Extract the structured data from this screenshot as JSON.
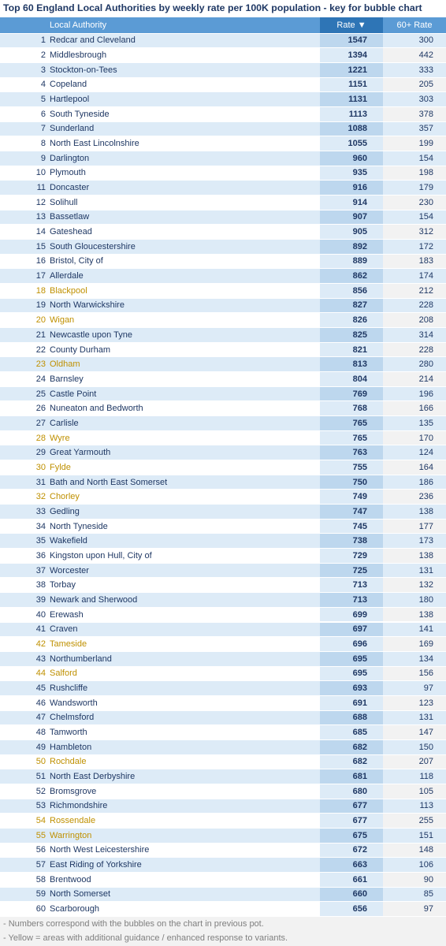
{
  "title": "Top 60 England Local Authorities by weekly rate per 100K population - key for bubble chart",
  "table": {
    "header": [
      "Local Authority",
      "Rate ▼",
      "60+ Rate"
    ],
    "highlight_color": "#bf9000",
    "rows": [
      {
        "rank": 1,
        "name": "Redcar and Cleveland",
        "rate": 1547,
        "rate_60": 300
      },
      {
        "rank": 2,
        "name": "Middlesbrough",
        "rate": 1394,
        "rate_60": 442
      },
      {
        "rank": 3,
        "name": "Stockton-on-Tees",
        "rate": 1221,
        "rate_60": 333
      },
      {
        "rank": 4,
        "name": "Copeland",
        "rate": 1151,
        "rate_60": 205
      },
      {
        "rank": 5,
        "name": "Hartlepool",
        "rate": 1131,
        "rate_60": 303
      },
      {
        "rank": 6,
        "name": "South Tyneside",
        "rate": 1113,
        "rate_60": 378
      },
      {
        "rank": 7,
        "name": "Sunderland",
        "rate": 1088,
        "rate_60": 357
      },
      {
        "rank": 8,
        "name": "North East Lincolnshire",
        "rate": 1055,
        "rate_60": 199
      },
      {
        "rank": 9,
        "name": "Darlington",
        "rate": 960,
        "rate_60": 154
      },
      {
        "rank": 10,
        "name": "Plymouth",
        "rate": 935,
        "rate_60": 198
      },
      {
        "rank": 11,
        "name": "Doncaster",
        "rate": 916,
        "rate_60": 179
      },
      {
        "rank": 12,
        "name": "Solihull",
        "rate": 914,
        "rate_60": 230
      },
      {
        "rank": 13,
        "name": "Bassetlaw",
        "rate": 907,
        "rate_60": 154
      },
      {
        "rank": 14,
        "name": "Gateshead",
        "rate": 905,
        "rate_60": 312
      },
      {
        "rank": 15,
        "name": "South Gloucestershire",
        "rate": 892,
        "rate_60": 172
      },
      {
        "rank": 16,
        "name": "Bristol, City of",
        "rate": 889,
        "rate_60": 183
      },
      {
        "rank": 17,
        "name": "Allerdale",
        "rate": 862,
        "rate_60": 174
      },
      {
        "rank": 18,
        "name": "Blackpool",
        "rate": 856,
        "rate_60": 212,
        "highlight": true
      },
      {
        "rank": 19,
        "name": "North Warwickshire",
        "rate": 827,
        "rate_60": 228
      },
      {
        "rank": 20,
        "name": "Wigan",
        "rate": 826,
        "rate_60": 208,
        "highlight": true
      },
      {
        "rank": 21,
        "name": "Newcastle upon Tyne",
        "rate": 825,
        "rate_60": 314
      },
      {
        "rank": 22,
        "name": "County Durham",
        "rate": 821,
        "rate_60": 228
      },
      {
        "rank": 23,
        "name": "Oldham",
        "rate": 813,
        "rate_60": 280,
        "highlight": true
      },
      {
        "rank": 24,
        "name": "Barnsley",
        "rate": 804,
        "rate_60": 214
      },
      {
        "rank": 25,
        "name": "Castle Point",
        "rate": 769,
        "rate_60": 196
      },
      {
        "rank": 26,
        "name": "Nuneaton and Bedworth",
        "rate": 768,
        "rate_60": 166
      },
      {
        "rank": 27,
        "name": "Carlisle",
        "rate": 765,
        "rate_60": 135
      },
      {
        "rank": 28,
        "name": "Wyre",
        "rate": 765,
        "rate_60": 170,
        "highlight": true
      },
      {
        "rank": 29,
        "name": "Great Yarmouth",
        "rate": 763,
        "rate_60": 124
      },
      {
        "rank": 30,
        "name": "Fylde",
        "rate": 755,
        "rate_60": 164,
        "highlight": true
      },
      {
        "rank": 31,
        "name": "Bath and North East Somerset",
        "rate": 750,
        "rate_60": 186
      },
      {
        "rank": 32,
        "name": "Chorley",
        "rate": 749,
        "rate_60": 236,
        "highlight": true
      },
      {
        "rank": 33,
        "name": "Gedling",
        "rate": 747,
        "rate_60": 138
      },
      {
        "rank": 34,
        "name": "North Tyneside",
        "rate": 745,
        "rate_60": 177
      },
      {
        "rank": 35,
        "name": "Wakefield",
        "rate": 738,
        "rate_60": 173
      },
      {
        "rank": 36,
        "name": "Kingston upon Hull, City of",
        "rate": 729,
        "rate_60": 138
      },
      {
        "rank": 37,
        "name": "Worcester",
        "rate": 725,
        "rate_60": 131
      },
      {
        "rank": 38,
        "name": "Torbay",
        "rate": 713,
        "rate_60": 132
      },
      {
        "rank": 39,
        "name": "Newark and Sherwood",
        "rate": 713,
        "rate_60": 180
      },
      {
        "rank": 40,
        "name": "Erewash",
        "rate": 699,
        "rate_60": 138
      },
      {
        "rank": 41,
        "name": "Craven",
        "rate": 697,
        "rate_60": 141
      },
      {
        "rank": 42,
        "name": "Tameside",
        "rate": 696,
        "rate_60": 169,
        "highlight": true
      },
      {
        "rank": 43,
        "name": "Northumberland",
        "rate": 695,
        "rate_60": 134
      },
      {
        "rank": 44,
        "name": "Salford",
        "rate": 695,
        "rate_60": 156,
        "highlight": true
      },
      {
        "rank": 45,
        "name": "Rushcliffe",
        "rate": 693,
        "rate_60": 97
      },
      {
        "rank": 46,
        "name": "Wandsworth",
        "rate": 691,
        "rate_60": 123
      },
      {
        "rank": 47,
        "name": "Chelmsford",
        "rate": 688,
        "rate_60": 131
      },
      {
        "rank": 48,
        "name": "Tamworth",
        "rate": 685,
        "rate_60": 147
      },
      {
        "rank": 49,
        "name": "Hambleton",
        "rate": 682,
        "rate_60": 150
      },
      {
        "rank": 50,
        "name": "Rochdale",
        "rate": 682,
        "rate_60": 207,
        "highlight": true
      },
      {
        "rank": 51,
        "name": "North East Derbyshire",
        "rate": 681,
        "rate_60": 118
      },
      {
        "rank": 52,
        "name": "Bromsgrove",
        "rate": 680,
        "rate_60": 105
      },
      {
        "rank": 53,
        "name": "Richmondshire",
        "rate": 677,
        "rate_60": 113
      },
      {
        "rank": 54,
        "name": "Rossendale",
        "rate": 677,
        "rate_60": 255,
        "highlight": true
      },
      {
        "rank": 55,
        "name": "Warrington",
        "rate": 675,
        "rate_60": 151,
        "highlight": true
      },
      {
        "rank": 56,
        "name": "North West Leicestershire",
        "rate": 672,
        "rate_60": 148
      },
      {
        "rank": 57,
        "name": "East Riding of Yorkshire",
        "rate": 663,
        "rate_60": 106
      },
      {
        "rank": 58,
        "name": "Brentwood",
        "rate": 661,
        "rate_60": 90
      },
      {
        "rank": 59,
        "name": "North Somerset",
        "rate": 660,
        "rate_60": 85
      },
      {
        "rank": 60,
        "name": "Scarborough",
        "rate": 656,
        "rate_60": 97
      }
    ]
  },
  "notes": [
    "- Numbers correspond with the bubbles on the chart in previous pot.",
    "- Yellow = areas with additional guidance / enhanced response to variants."
  ]
}
